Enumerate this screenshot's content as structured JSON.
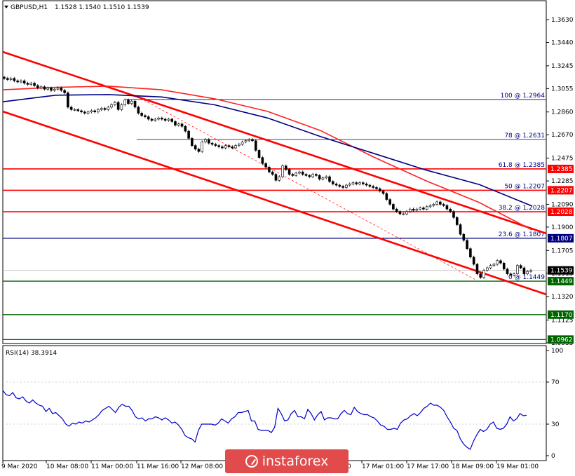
{
  "header": {
    "symbol": "GBPUSD,H1",
    "ohlc": "1.1528 1.1540 1.1510 1.1539",
    "rsi_title": "RSI(14) 38.3914"
  },
  "watermark": {
    "text": "instaforex"
  },
  "colors": {
    "trend": "#ff0000",
    "ma_fast": "#ff2020",
    "ma_slow": "#000080",
    "rsi": "#0000cc",
    "support": "#006400",
    "fib": "#000080",
    "price_tag": "#000000"
  },
  "chart_data": [
    {
      "type": "candlestick",
      "ylim": [
        1.0915,
        1.3725
      ],
      "y_ticks": [
        "1.3630",
        "1.3440",
        "1.3245",
        "1.3055",
        "1.2860",
        "1.2670",
        "1.2475",
        "1.2285",
        "1.2090",
        "1.1900",
        "1.1705",
        "1.1515",
        "1.1320",
        "1.1125",
        "1.0935"
      ],
      "x_ticks": [
        "9 Mar 2020",
        "10 Mar 08:00",
        "11 Mar 00:00",
        "11 Mar 16:00",
        "12 Mar 08:00",
        "0",
        "17 Mar 01:00",
        "17 Mar 17:00",
        "18 Mar 09:00",
        "19 Mar 01:00"
      ],
      "close_series": [
        1.314,
        1.313,
        1.314,
        1.312,
        1.311,
        1.312,
        1.31,
        1.309,
        1.31,
        1.308,
        1.306,
        1.307,
        1.305,
        1.306,
        1.304,
        1.305,
        1.306,
        1.304,
        1.302,
        1.29,
        1.288,
        1.288,
        1.287,
        1.286,
        1.285,
        1.286,
        1.287,
        1.286,
        1.288,
        1.289,
        1.288,
        1.29,
        1.292,
        1.294,
        1.288,
        1.292,
        1.296,
        1.293,
        1.295,
        1.29,
        1.285,
        1.283,
        1.282,
        1.28,
        1.279,
        1.28,
        1.281,
        1.28,
        1.279,
        1.28,
        1.278,
        1.275,
        1.276,
        1.274,
        1.27,
        1.264,
        1.258,
        1.255,
        1.253,
        1.261,
        1.263,
        1.26,
        1.259,
        1.258,
        1.257,
        1.256,
        1.258,
        1.257,
        1.256,
        1.258,
        1.259,
        1.261,
        1.262,
        1.263,
        1.262,
        1.254,
        1.248,
        1.243,
        1.24,
        1.236,
        1.234,
        1.229,
        1.232,
        1.241,
        1.238,
        1.234,
        1.233,
        1.235,
        1.236,
        1.234,
        1.233,
        1.232,
        1.234,
        1.233,
        1.23,
        1.231,
        1.232,
        1.228,
        1.226,
        1.225,
        1.224,
        1.223,
        1.225,
        1.226,
        1.227,
        1.226,
        1.227,
        1.226,
        1.225,
        1.224,
        1.223,
        1.222,
        1.22,
        1.218,
        1.213,
        1.209,
        1.205,
        1.203,
        1.201,
        1.201,
        1.203,
        1.205,
        1.204,
        1.205,
        1.206,
        1.205,
        1.207,
        1.208,
        1.209,
        1.211,
        1.209,
        1.208,
        1.205,
        1.203,
        1.198,
        1.192,
        1.184,
        1.179,
        1.172,
        1.165,
        1.159,
        1.151,
        1.148,
        1.154,
        1.156,
        1.158,
        1.159,
        1.162,
        1.16,
        1.155,
        1.151,
        1.15,
        1.151,
        1.158,
        1.156,
        1.151,
        1.153,
        1.1539
      ],
      "moving_averages": [
        {
          "color": "#ff2020",
          "values": [
            1.3045,
            1.3065,
            1.3075,
            1.3045,
            1.297,
            1.2865,
            1.2705,
            1.2485,
            1.2285,
            1.2105,
            1.1875
          ]
        },
        {
          "color": "#000080",
          "values": [
            1.2945,
            1.3,
            1.3005,
            1.2985,
            1.292,
            1.281,
            1.2655,
            1.2515,
            1.2375,
            1.2255,
            1.2075
          ]
        }
      ],
      "trend_lines": [
        "channel-upper",
        "channel-lower",
        "resistance"
      ],
      "horizontal_levels": [
        {
          "value": 1.2385,
          "tag": "1.2385",
          "color": "#ff0000"
        },
        {
          "value": 1.2207,
          "tag": "1.2207",
          "color": "#ff0000"
        },
        {
          "value": 1.2028,
          "tag": "1.2028",
          "color": "#ff0000"
        },
        {
          "value": 1.1807,
          "tag": "1.1807",
          "color": "#000080"
        },
        {
          "value": 1.1449,
          "tag": "1.1449",
          "color": "#006400"
        },
        {
          "value": 1.117,
          "tag": "1.1170",
          "color": "#006400"
        },
        {
          "value": 1.0962,
          "tag": "1.0962",
          "color": "#006400"
        }
      ],
      "fibonacci": [
        {
          "label": "100 @ 1.2964",
          "value": 1.2964
        },
        {
          "label": "78 @ 1.2631",
          "value": 1.2631
        },
        {
          "label": "61.8 @ 1.2385",
          "value": 1.2385
        },
        {
          "label": "50 @ 1.2207",
          "value": 1.2207
        },
        {
          "label": "38.2 @ 1.2028",
          "value": 1.2028
        },
        {
          "label": "23.6 @ 1.1807",
          "value": 1.1807
        },
        {
          "label": "0 @ 1.1449",
          "value": 1.1449
        }
      ],
      "current_price": {
        "value": 1.1539,
        "tag": "1.1539"
      },
      "grid": false
    },
    {
      "type": "line",
      "title": "RSI(14) 38.3914",
      "ylim": [
        0,
        100
      ],
      "y_ticks": [
        "100",
        "70",
        "30",
        "0"
      ],
      "values": [
        62,
        58,
        57,
        60,
        55,
        54,
        56,
        52,
        50,
        53,
        50,
        48,
        47,
        42,
        45,
        40,
        41,
        38,
        35,
        30,
        28,
        31,
        30,
        32,
        31,
        33,
        32,
        34,
        36,
        39,
        43,
        45,
        47,
        44,
        41,
        46,
        49,
        47,
        47,
        43,
        37,
        35,
        36,
        33,
        35,
        35,
        37,
        36,
        34,
        36,
        34,
        31,
        32,
        29,
        25,
        19,
        17,
        16,
        13,
        24,
        30,
        30,
        30,
        30,
        29,
        31,
        35,
        33,
        31,
        35,
        37,
        41,
        41,
        42,
        43,
        33,
        33,
        25,
        24,
        24,
        24,
        22,
        27,
        45,
        40,
        33,
        34,
        40,
        43,
        37,
        37,
        35,
        44,
        40,
        34,
        39,
        42,
        34,
        36,
        36,
        35,
        35,
        40,
        43,
        40,
        39,
        46,
        42,
        40,
        39,
        39,
        37,
        36,
        33,
        29,
        28,
        25,
        25,
        26,
        25,
        31,
        34,
        35,
        38,
        40,
        38,
        41,
        45,
        47,
        50,
        48,
        48,
        46,
        43,
        37,
        32,
        26,
        24,
        16,
        11,
        8,
        6,
        14,
        20,
        25,
        23,
        25,
        30,
        32,
        26,
        25,
        26,
        30,
        37,
        33,
        35,
        40,
        38,
        38.3914
      ],
      "grid": false
    }
  ]
}
